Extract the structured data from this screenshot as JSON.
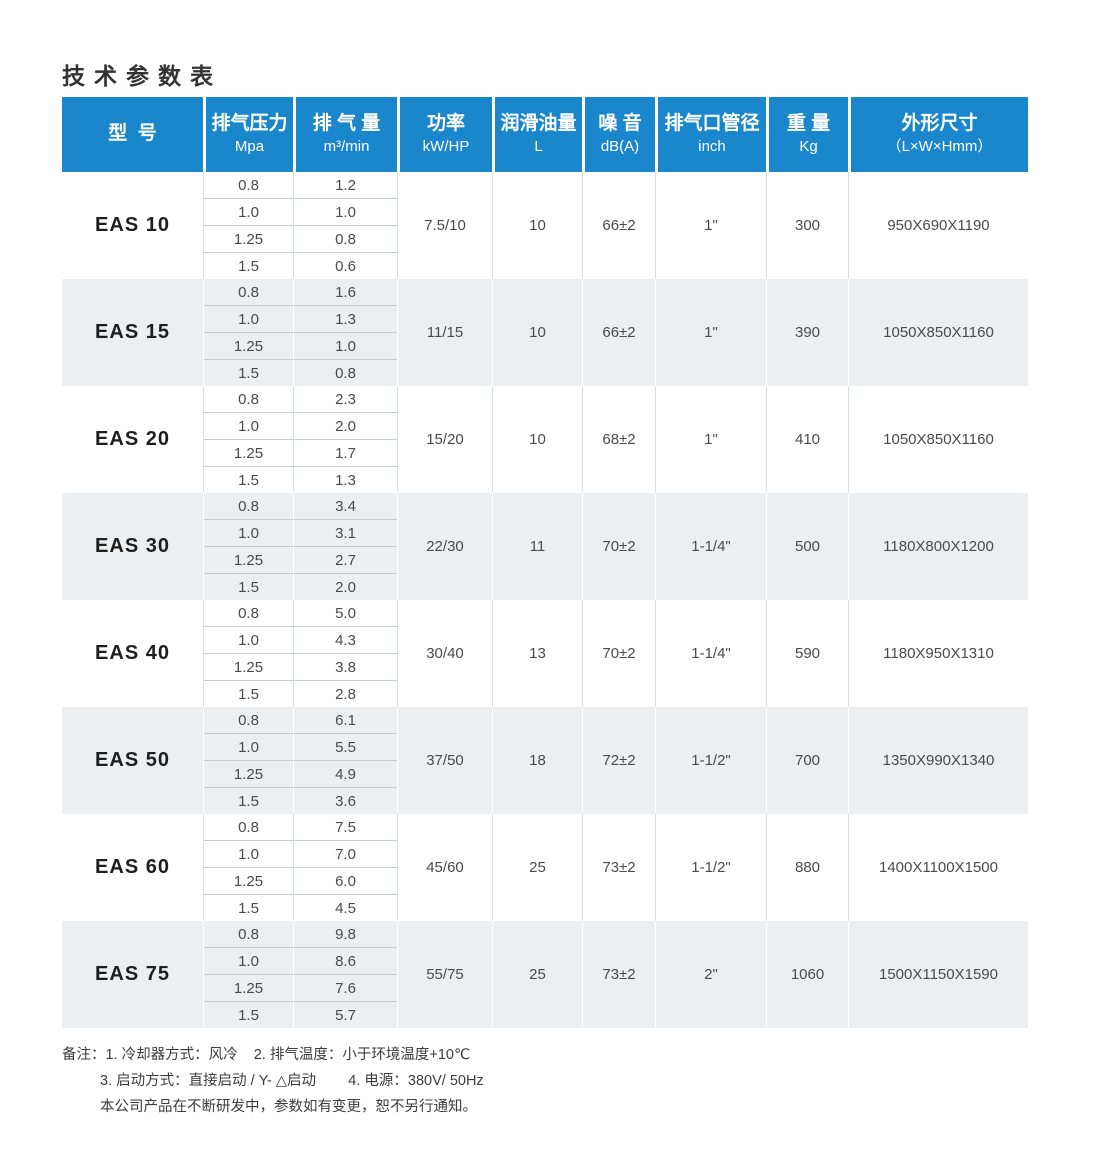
{
  "page": {
    "title": "技术参数表"
  },
  "colors": {
    "header_bg": "#1a87cd",
    "band_bg": "#ebeff2",
    "grid_line": "#d9dee2",
    "band_grid_line": "#ffffff",
    "subrow_line": "#c6ccd0"
  },
  "table": {
    "headers": [
      {
        "line1": "型  号",
        "line2": ""
      },
      {
        "line1": "排气压力",
        "line2": "Mpa"
      },
      {
        "line1": "排 气 量",
        "line2": "m³/min"
      },
      {
        "line1": "功率",
        "line2": "kW/HP"
      },
      {
        "line1": "润滑油量",
        "line2": "L"
      },
      {
        "line1": "噪 音",
        "line2": "dB(A)"
      },
      {
        "line1": "排气口管径",
        "line2": "inch"
      },
      {
        "line1": "重 量",
        "line2": "Kg"
      },
      {
        "line1": "外形尺寸",
        "line2": "（L×W×Hmm）"
      }
    ],
    "rows": [
      {
        "model": "EAS 10",
        "pressures": [
          "0.8",
          "1.0",
          "1.25",
          "1.5"
        ],
        "displacements": [
          "1.2",
          "1.0",
          "0.8",
          "0.6"
        ],
        "power": "7.5/10",
        "oil": "10",
        "noise": "66±2",
        "pipe": "1\"",
        "weight": "300",
        "dimensions": "950X690X1190"
      },
      {
        "model": "EAS 15",
        "pressures": [
          "0.8",
          "1.0",
          "1.25",
          "1.5"
        ],
        "displacements": [
          "1.6",
          "1.3",
          "1.0",
          "0.8"
        ],
        "power": "11/15",
        "oil": "10",
        "noise": "66±2",
        "pipe": "1\"",
        "weight": "390",
        "dimensions": "1050X850X1160"
      },
      {
        "model": "EAS 20",
        "pressures": [
          "0.8",
          "1.0",
          "1.25",
          "1.5"
        ],
        "displacements": [
          "2.3",
          "2.0",
          "1.7",
          "1.3"
        ],
        "power": "15/20",
        "oil": "10",
        "noise": "68±2",
        "pipe": "1\"",
        "weight": "410",
        "dimensions": "1050X850X1160"
      },
      {
        "model": "EAS 30",
        "pressures": [
          "0.8",
          "1.0",
          "1.25",
          "1.5"
        ],
        "displacements": [
          "3.4",
          "3.1",
          "2.7",
          "2.0"
        ],
        "power": "22/30",
        "oil": "11",
        "noise": "70±2",
        "pipe": "1-1/4\"",
        "weight": "500",
        "dimensions": "1180X800X1200"
      },
      {
        "model": "EAS 40",
        "pressures": [
          "0.8",
          "1.0",
          "1.25",
          "1.5"
        ],
        "displacements": [
          "5.0",
          "4.3",
          "3.8",
          "2.8"
        ],
        "power": "30/40",
        "oil": "13",
        "noise": "70±2",
        "pipe": "1-1/4\"",
        "weight": "590",
        "dimensions": "1180X950X1310"
      },
      {
        "model": "EAS 50",
        "pressures": [
          "0.8",
          "1.0",
          "1.25",
          "1.5"
        ],
        "displacements": [
          "6.1",
          "5.5",
          "4.9",
          "3.6"
        ],
        "power": "37/50",
        "oil": "18",
        "noise": "72±2",
        "pipe": "1-1/2\"",
        "weight": "700",
        "dimensions": "1350X990X1340"
      },
      {
        "model": "EAS 60",
        "pressures": [
          "0.8",
          "1.0",
          "1.25",
          "1.5"
        ],
        "displacements": [
          "7.5",
          "7.0",
          "6.0",
          "4.5"
        ],
        "power": "45/60",
        "oil": "25",
        "noise": "73±2",
        "pipe": "1-1/2\"",
        "weight": "880",
        "dimensions": "1400X1100X1500"
      },
      {
        "model": "EAS 75",
        "pressures": [
          "0.8",
          "1.0",
          "1.25",
          "1.5"
        ],
        "displacements": [
          "9.8",
          "8.6",
          "7.6",
          "5.7"
        ],
        "power": "55/75",
        "oil": "25",
        "noise": "73±2",
        "pipe": "2\"",
        "weight": "1060",
        "dimensions": "1500X1150X1590"
      }
    ]
  },
  "notes": {
    "lines": [
      "备注：1. 冷却器方式：风冷    2. 排气温度：小于环境温度+10℃",
      "3. 启动方式：直接启动 / Y- △启动        4. 电源：380V/ 50Hz",
      "本公司产品在不断研发中，参数如有变更，恕不另行通知。"
    ]
  }
}
